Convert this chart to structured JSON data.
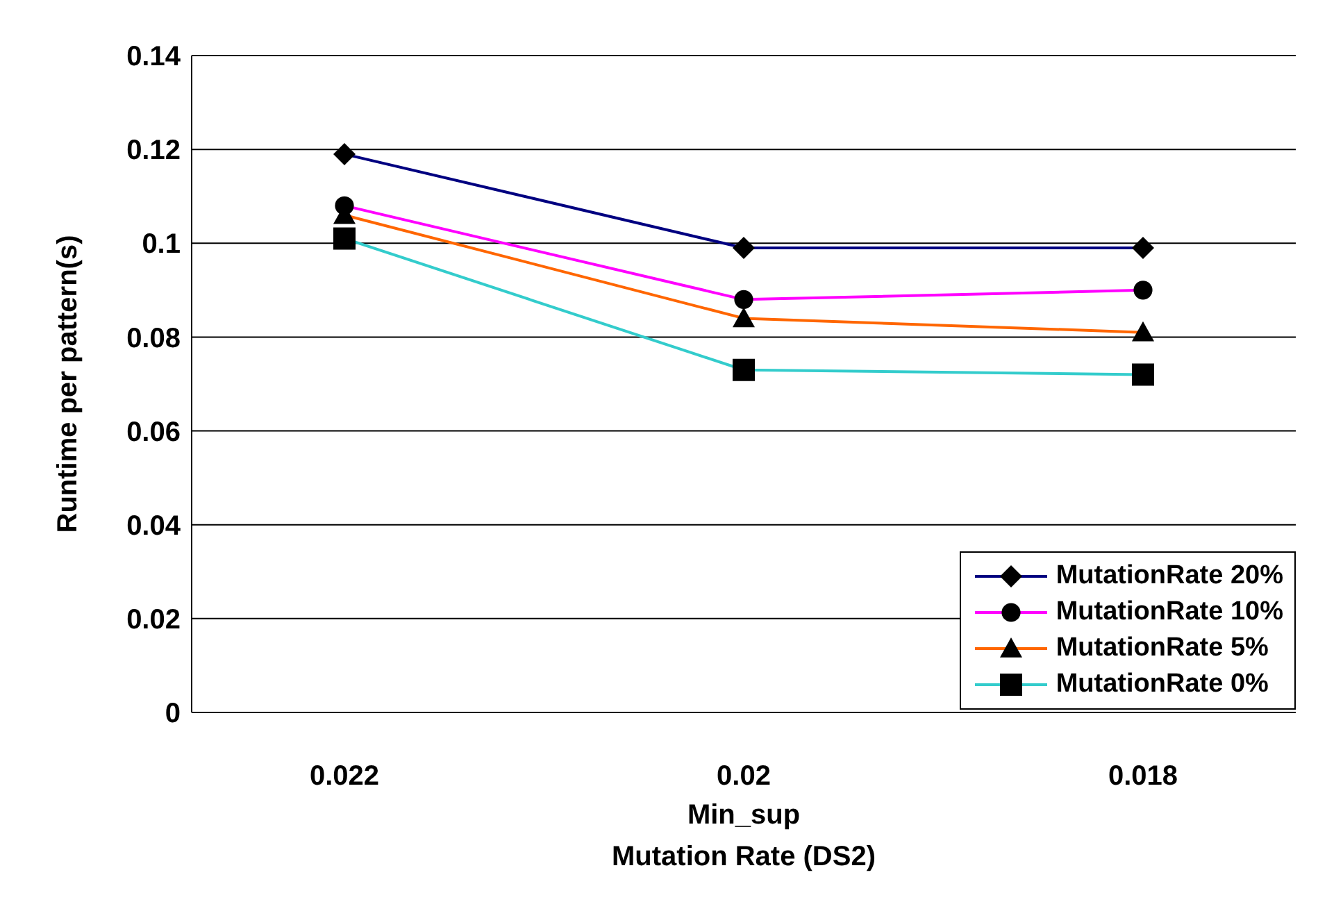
{
  "chart_data": {
    "type": "line",
    "title": "Mutation Rate (DS2)",
    "xlabel": "Min_sup",
    "ylabel": "Runtime per pattern(s)",
    "categories": [
      "0.022",
      "0.02",
      "0.018"
    ],
    "series": [
      {
        "name": "MutationRate 20%",
        "color": "#000080",
        "marker": "diamond",
        "values": [
          0.119,
          0.099,
          0.099
        ]
      },
      {
        "name": "MutationRate 10%",
        "color": "#ff00ff",
        "marker": "circle",
        "values": [
          0.108,
          0.088,
          0.09
        ]
      },
      {
        "name": "MutationRate 5%",
        "color": "#ff6600",
        "marker": "triangle",
        "values": [
          0.106,
          0.084,
          0.081
        ]
      },
      {
        "name": "MutationRate 0%",
        "color": "#33cccc",
        "marker": "square",
        "values": [
          0.101,
          0.073,
          0.072
        ]
      }
    ],
    "ylim": [
      0,
      0.14
    ],
    "yticks": [
      0,
      0.02,
      0.04,
      0.06,
      0.08,
      0.1,
      0.12,
      0.14
    ],
    "grid": "y",
    "legend": "bottom right",
    "line_style": "solid"
  }
}
